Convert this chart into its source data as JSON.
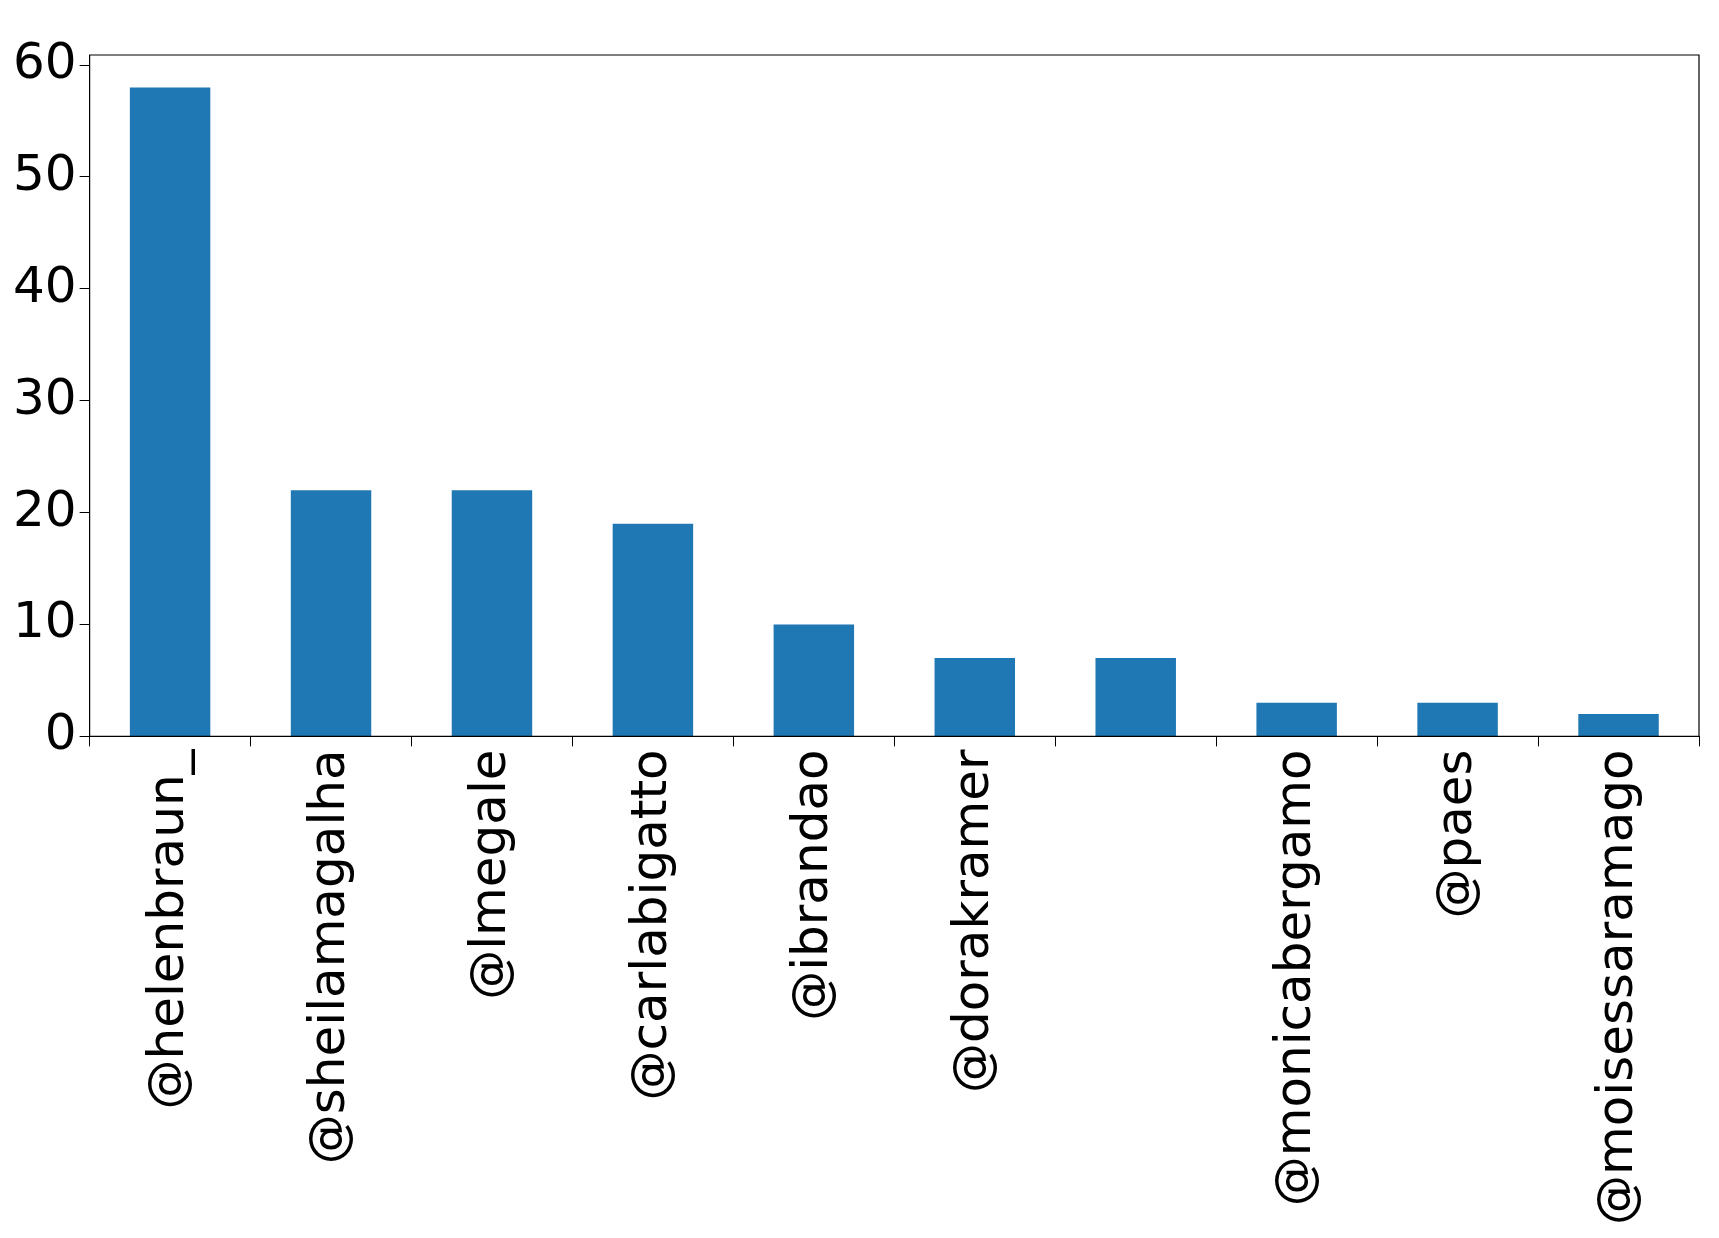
{
  "chart_data": {
    "type": "bar",
    "categories": [
      "@helenbraun_",
      "@sheilamagalha",
      "@lmegale",
      "@carlabigatto",
      "@ibrandao",
      "@dorakramer",
      null,
      "@monicabergamo",
      "@paes",
      "@moisessaramago"
    ],
    "values": [
      58,
      22,
      22,
      19,
      10,
      7,
      7,
      3,
      3,
      2
    ],
    "color": "#1f77b4",
    "ylim": [
      0,
      60.9
    ],
    "yticks": [
      0,
      10,
      20,
      30,
      40,
      50,
      60
    ],
    "grid": false,
    "legend": false
  }
}
